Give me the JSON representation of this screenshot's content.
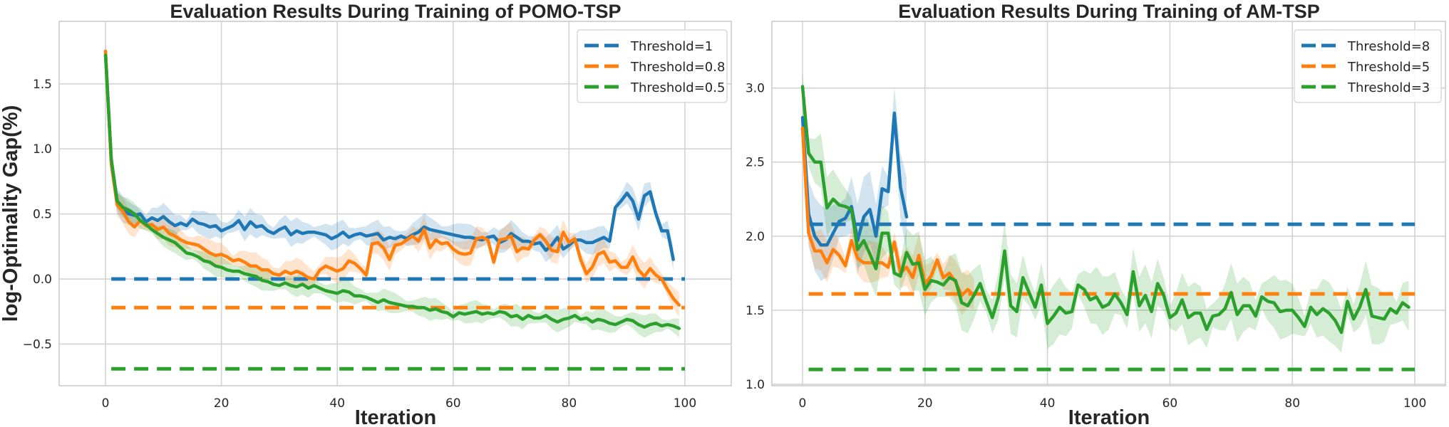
{
  "chart_data": [
    {
      "type": "line",
      "title": "Evaluation Results During Training of POMO-TSP",
      "xlabel": "Iteration",
      "ylabel": "log-Optimality Gap(%)",
      "xlim": [
        -8,
        108
      ],
      "ylim": [
        -0.82,
        1.98
      ],
      "xticks": [
        0,
        20,
        40,
        60,
        80,
        100
      ],
      "xtick_labels": [
        "0",
        "20",
        "40",
        "60",
        "80",
        "100"
      ],
      "yticks": [
        -0.5,
        0.0,
        0.5,
        1.0,
        1.5
      ],
      "ytick_labels": [
        "−0.5",
        "0.0",
        "0.5",
        "1.0",
        "1.5"
      ],
      "grid": true,
      "legend_position": "top-right",
      "legend": [
        "Threshold=1",
        "Threshold=0.8",
        "Threshold=0.5"
      ],
      "thresholds": [
        {
          "name": "Threshold=1",
          "value": 0.0,
          "x_range": [
            1,
            100
          ],
          "color": "#1f77b4"
        },
        {
          "name": "Threshold=0.8",
          "value": -0.22,
          "x_range": [
            1,
            100
          ],
          "color": "#ff7f0e"
        },
        {
          "name": "Threshold=0.5",
          "value": -0.69,
          "x_range": [
            1,
            100
          ],
          "color": "#2ca02c"
        }
      ],
      "series": [
        {
          "name": "Threshold=1",
          "color": "#1f77b4",
          "band": 0.07,
          "x_start": 0,
          "values": [
            1.75,
            0.9,
            0.6,
            0.53,
            0.5,
            0.49,
            0.5,
            0.44,
            0.47,
            0.45,
            0.48,
            0.44,
            0.41,
            0.43,
            0.41,
            0.46,
            0.43,
            0.42,
            0.4,
            0.41,
            0.37,
            0.39,
            0.41,
            0.45,
            0.38,
            0.44,
            0.4,
            0.41,
            0.37,
            0.35,
            0.38,
            0.4,
            0.34,
            0.37,
            0.35,
            0.36,
            0.36,
            0.35,
            0.34,
            0.31,
            0.33,
            0.36,
            0.32,
            0.34,
            0.35,
            0.33,
            0.34,
            0.35,
            0.3,
            0.32,
            0.31,
            0.33,
            0.31,
            0.34,
            0.36,
            0.4,
            0.38,
            0.37,
            0.36,
            0.35,
            0.34,
            0.33,
            0.32,
            0.32,
            0.31,
            0.3,
            0.32,
            0.33,
            0.28,
            0.3,
            0.35,
            0.32,
            0.29,
            0.29,
            0.27,
            0.28,
            0.22,
            0.26,
            0.32,
            0.23,
            0.26,
            0.3,
            0.3,
            0.28,
            0.28,
            0.3,
            0.32,
            0.29,
            0.55,
            0.6,
            0.66,
            0.6,
            0.46,
            0.64,
            0.67,
            0.5,
            0.37,
            0.37,
            0.15
          ],
          "note": "mean curve; shaded band shows variability"
        },
        {
          "name": "Threshold=0.8",
          "color": "#ff7f0e",
          "band": 0.07,
          "x_start": 0,
          "values": [
            1.75,
            0.88,
            0.57,
            0.52,
            0.44,
            0.4,
            0.45,
            0.41,
            0.42,
            0.38,
            0.4,
            0.35,
            0.33,
            0.3,
            0.28,
            0.27,
            0.26,
            0.23,
            0.2,
            0.18,
            0.19,
            0.17,
            0.14,
            0.15,
            0.13,
            0.1,
            0.1,
            0.07,
            0.07,
            0.04,
            0.03,
            0.06,
            0.04,
            0.06,
            0.04,
            0.01,
            0.0,
            0.07,
            0.1,
            0.08,
            0.06,
            0.08,
            0.14,
            0.12,
            0.08,
            0.03,
            0.27,
            0.28,
            0.24,
            0.15,
            0.26,
            0.27,
            0.3,
            0.33,
            0.29,
            0.38,
            0.24,
            0.3,
            0.27,
            0.28,
            0.23,
            0.2,
            0.19,
            0.2,
            0.31,
            0.32,
            0.3,
            0.13,
            0.3,
            0.31,
            0.33,
            0.21,
            0.24,
            0.23,
            0.3,
            0.34,
            0.29,
            0.22,
            0.21,
            0.36,
            0.28,
            0.31,
            0.15,
            0.04,
            0.09,
            0.19,
            0.21,
            0.13,
            0.14,
            0.09,
            0.09,
            0.17,
            0.07,
            0.02,
            0.08,
            0.03,
            0.0,
            -0.08,
            -0.15,
            -0.2
          ],
          "note": "mean curve; shaded band shows variability"
        },
        {
          "name": "Threshold=0.5",
          "color": "#2ca02c",
          "band": 0.06,
          "x_start": 0,
          "values": [
            1.72,
            0.92,
            0.6,
            0.55,
            0.53,
            0.5,
            0.45,
            0.42,
            0.38,
            0.35,
            0.32,
            0.3,
            0.28,
            0.24,
            0.2,
            0.19,
            0.17,
            0.14,
            0.13,
            0.1,
            0.09,
            0.07,
            0.06,
            0.06,
            0.04,
            0.03,
            0.02,
            -0.01,
            -0.02,
            -0.04,
            -0.05,
            -0.03,
            -0.05,
            -0.06,
            -0.04,
            -0.07,
            -0.05,
            -0.07,
            -0.09,
            -0.1,
            -0.11,
            -0.09,
            -0.1,
            -0.13,
            -0.13,
            -0.14,
            -0.16,
            -0.18,
            -0.16,
            -0.18,
            -0.19,
            -0.2,
            -0.21,
            -0.21,
            -0.22,
            -0.22,
            -0.24,
            -0.23,
            -0.25,
            -0.26,
            -0.29,
            -0.26,
            -0.27,
            -0.26,
            -0.25,
            -0.27,
            -0.26,
            -0.27,
            -0.25,
            -0.26,
            -0.29,
            -0.28,
            -0.31,
            -0.28,
            -0.3,
            -0.3,
            -0.28,
            -0.31,
            -0.33,
            -0.31,
            -0.3,
            -0.28,
            -0.31,
            -0.3,
            -0.33,
            -0.31,
            -0.32,
            -0.34,
            -0.35,
            -0.33,
            -0.31,
            -0.32,
            -0.35,
            -0.37,
            -0.35,
            -0.34,
            -0.36,
            -0.35,
            -0.36,
            -0.38
          ],
          "note": "mean curve; shaded band shows variability"
        }
      ]
    },
    {
      "type": "line",
      "title": "Evaluation Results During Training of AM-TSP",
      "xlabel": "Iteration",
      "ylabel": "",
      "xlim": [
        -5,
        105
      ],
      "ylim": [
        0.99,
        3.45
      ],
      "xticks": [
        0,
        20,
        40,
        60,
        80,
        100
      ],
      "xtick_labels": [
        "0",
        "20",
        "40",
        "60",
        "80",
        "100"
      ],
      "yticks": [
        1.0,
        1.5,
        2.0,
        2.5,
        3.0
      ],
      "ytick_labels": [
        "1.0",
        "1.5",
        "2.0",
        "2.5",
        "3.0"
      ],
      "grid": true,
      "legend_position": "top-right",
      "legend": [
        "Threshold=8",
        "Threshold=5",
        "Threshold=3"
      ],
      "thresholds": [
        {
          "name": "Threshold=8",
          "value": 2.08,
          "x_range": [
            1,
            100
          ],
          "color": "#1f77b4"
        },
        {
          "name": "Threshold=5",
          "value": 1.61,
          "x_range": [
            1,
            100
          ],
          "color": "#ff7f0e"
        },
        {
          "name": "Threshold=3",
          "value": 1.1,
          "x_range": [
            1,
            100
          ],
          "color": "#2ca02c"
        }
      ],
      "series": [
        {
          "name": "Threshold=8",
          "color": "#1f77b4",
          "band": 0.18,
          "x_start": 0,
          "values": [
            2.8,
            2.15,
            2.0,
            1.94,
            1.94,
            2.02,
            2.1,
            2.12,
            2.2,
            1.97,
            2.13,
            2.18,
            2.0,
            2.32,
            2.3,
            2.83,
            2.33,
            2.13
          ],
          "note": "run ends at iteration 17"
        },
        {
          "name": "Threshold=5",
          "color": "#ff7f0e",
          "band": 0.1,
          "x_start": 0,
          "values": [
            2.73,
            2.02,
            1.9,
            1.9,
            1.82,
            1.91,
            1.87,
            1.8,
            1.97,
            1.85,
            1.82,
            1.82,
            1.82,
            1.82,
            1.79,
            1.96,
            1.75,
            1.79,
            1.72,
            1.87,
            1.68,
            1.73,
            1.84,
            1.72,
            1.75,
            1.69,
            1.6,
            1.64,
            1.6
          ],
          "note": "run ends around iteration 28"
        },
        {
          "name": "Threshold=3",
          "color": "#2ca02c",
          "band": 0.14,
          "x_start": 0,
          "values": [
            3.01,
            2.56,
            2.5,
            2.5,
            2.19,
            2.25,
            2.21,
            2.2,
            2.18,
            1.91,
            1.97,
            1.88,
            1.78,
            2.02,
            2.02,
            1.75,
            1.73,
            1.89,
            1.81,
            1.82,
            1.64,
            1.7,
            1.69,
            1.67,
            1.72,
            1.7,
            1.55,
            1.53,
            1.6,
            1.68,
            1.56,
            1.45,
            1.59,
            1.9,
            1.53,
            1.49,
            1.72,
            1.62,
            1.52,
            1.67,
            1.41,
            1.46,
            1.52,
            1.48,
            1.49,
            1.67,
            1.64,
            1.57,
            1.59,
            1.52,
            1.54,
            1.61,
            1.55,
            1.47,
            1.76,
            1.53,
            1.6,
            1.49,
            1.68,
            1.6,
            1.45,
            1.48,
            1.57,
            1.45,
            1.48,
            1.48,
            1.37,
            1.46,
            1.47,
            1.51,
            1.62,
            1.47,
            1.53,
            1.53,
            1.46,
            1.59,
            1.56,
            1.55,
            1.49,
            1.5,
            1.5,
            1.45,
            1.39,
            1.52,
            1.47,
            1.51,
            1.48,
            1.43,
            1.35,
            1.56,
            1.44,
            1.52,
            1.64,
            1.46,
            1.45,
            1.44,
            1.51,
            1.48,
            1.55,
            1.52
          ],
          "note": "mean curve; shaded band shows variability"
        }
      ]
    }
  ]
}
